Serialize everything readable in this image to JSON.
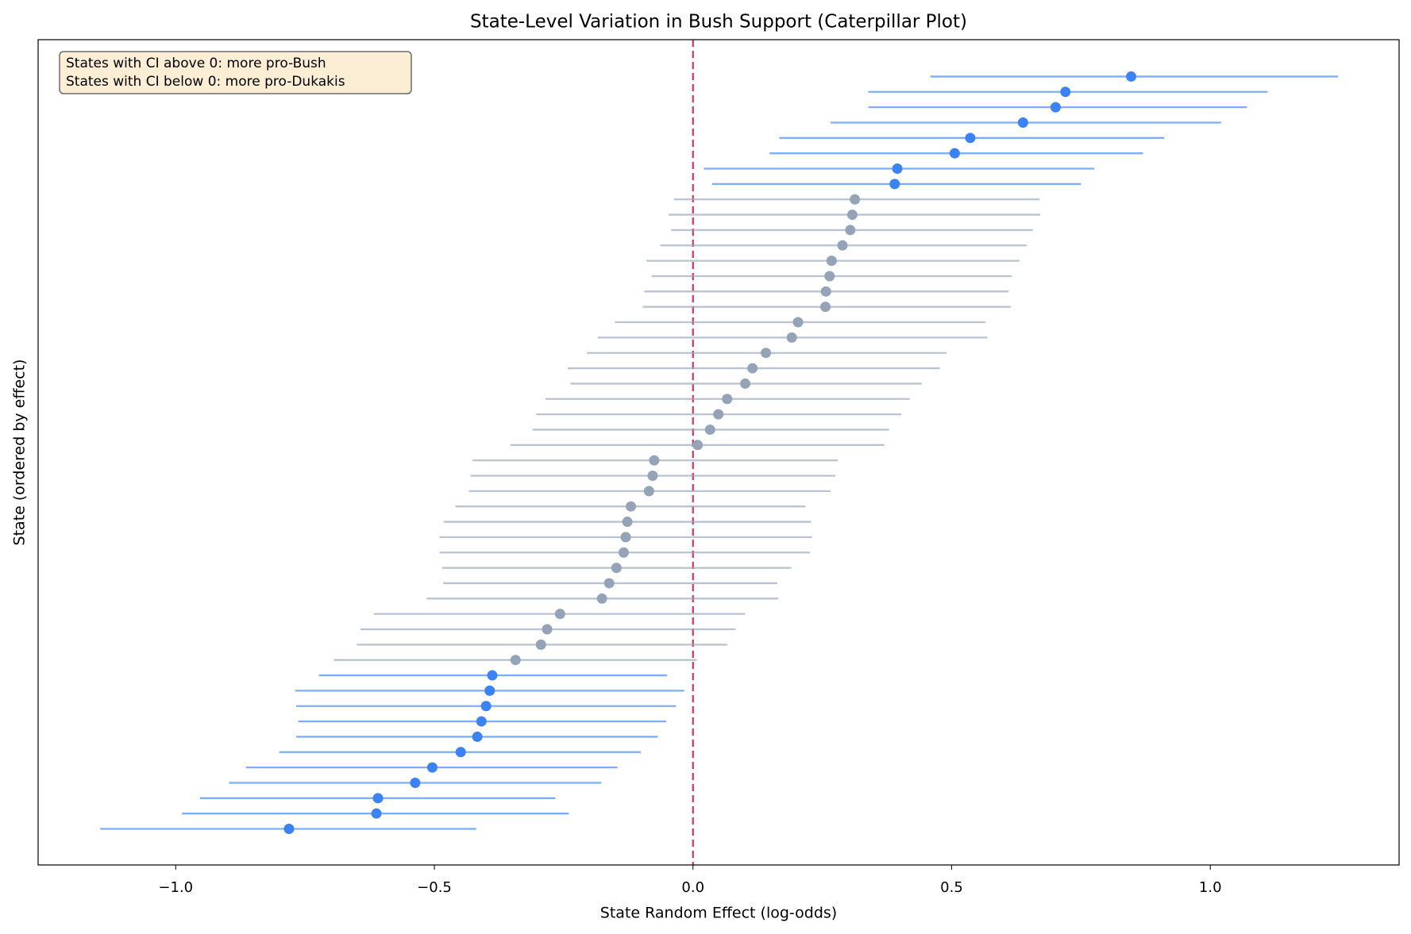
{
  "chart_data": {
    "type": "caterpillar",
    "title": "State-Level Variation in Bush Support (Caterpillar Plot)",
    "xlabel": "State Random Effect (log-odds)",
    "ylabel": "State (ordered by effect)",
    "annotations": [
      "States with CI above 0: more pro-Bush",
      "States with CI below 0: more pro-Dukakis"
    ],
    "values": [
      -0.781,
      -0.612,
      -0.609,
      -0.537,
      -0.504,
      -0.449,
      -0.417,
      -0.409,
      -0.4,
      -0.393,
      -0.388,
      -0.343,
      -0.294,
      -0.282,
      -0.257,
      -0.176,
      -0.162,
      -0.148,
      -0.134,
      -0.13,
      -0.127,
      -0.12,
      -0.085,
      -0.078,
      -0.075,
      0.009,
      0.033,
      0.049,
      0.066,
      0.101,
      0.115,
      0.141,
      0.191,
      0.203,
      0.256,
      0.257,
      0.264,
      0.268,
      0.289,
      0.304,
      0.308,
      0.313,
      0.39,
      0.395,
      0.506,
      0.536,
      0.638,
      0.701,
      0.72,
      0.847
    ],
    "lower": [
      -1.146,
      -0.988,
      -0.953,
      -0.897,
      -0.864,
      -0.8,
      -0.767,
      -0.763,
      -0.767,
      -0.769,
      -0.723,
      -0.694,
      -0.65,
      -0.643,
      -0.617,
      -0.515,
      -0.483,
      -0.485,
      -0.49,
      -0.49,
      -0.482,
      -0.459,
      -0.433,
      -0.43,
      -0.426,
      -0.353,
      -0.31,
      -0.303,
      -0.285,
      -0.237,
      -0.242,
      -0.205,
      -0.184,
      -0.151,
      -0.097,
      -0.094,
      -0.08,
      -0.09,
      -0.063,
      -0.042,
      -0.047,
      -0.037,
      0.037,
      0.021,
      0.148,
      0.167,
      0.266,
      0.339,
      0.339,
      0.459
    ],
    "upper": [
      -0.419,
      -0.24,
      -0.266,
      -0.177,
      -0.146,
      -0.101,
      -0.068,
      -0.052,
      -0.033,
      -0.017,
      -0.05,
      0.007,
      0.066,
      0.082,
      0.101,
      0.165,
      0.163,
      0.19,
      0.226,
      0.23,
      0.228,
      0.217,
      0.266,
      0.275,
      0.28,
      0.37,
      0.379,
      0.403,
      0.419,
      0.442,
      0.477,
      0.49,
      0.569,
      0.565,
      0.614,
      0.61,
      0.616,
      0.631,
      0.645,
      0.657,
      0.671,
      0.67,
      0.75,
      0.776,
      0.87,
      0.911,
      1.021,
      1.071,
      1.111,
      1.247
    ],
    "significant_color": "#3b82f6",
    "default_color": "#94a3b8",
    "reference_line": 0,
    "reference_color": "#d6436e",
    "xlim": [
      -1.266,
      1.365
    ],
    "xticks": [
      {
        "value": -1.0,
        "label": "−1.0"
      },
      {
        "value": -0.5,
        "label": "−0.5"
      },
      {
        "value": 0.0,
        "label": "0.0"
      },
      0.5,
      {
        "value": 1.0,
        "label": "1.0"
      }
    ]
  }
}
